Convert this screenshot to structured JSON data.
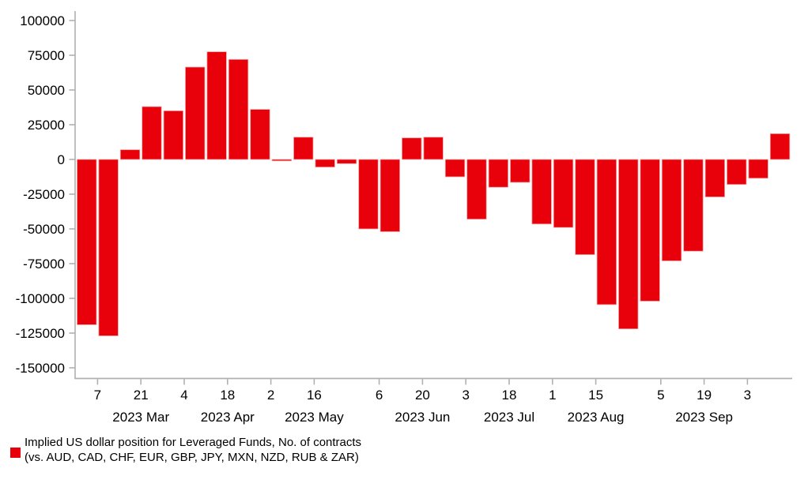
{
  "chart_data": {
    "type": "bar",
    "title": "",
    "xlabel": "",
    "ylabel": "",
    "grid": false,
    "legend_position": "bottom-left",
    "bar_color": "#e8000a",
    "bar_outline_color": "#f2a2a2",
    "axis_color": "#b0b0b0",
    "text_color": "#000000",
    "ylim": [
      -150000,
      100000
    ],
    "y_ticks": [
      100000,
      75000,
      50000,
      25000,
      0,
      -25000,
      -50000,
      -75000,
      -100000,
      -125000,
      -150000
    ],
    "series_name": "Implied US dollar position for Leveraged Funds, No. of contracts (vs. AUD, CAD, CHF, EUR, GBP, JPY, MXN, NZD, RUB & ZAR)",
    "categories": [
      "2023-02-28",
      "2023-03-07",
      "2023-03-14",
      "2023-03-21",
      "2023-03-28",
      "2023-04-04",
      "2023-04-11",
      "2023-04-18",
      "2023-04-25",
      "2023-05-02",
      "2023-05-09",
      "2023-05-16",
      "2023-05-23",
      "2023-05-30",
      "2023-06-06",
      "2023-06-13",
      "2023-06-20",
      "2023-06-27",
      "2023-07-03",
      "2023-07-11",
      "2023-07-18",
      "2023-07-25",
      "2023-08-01",
      "2023-08-08",
      "2023-08-15",
      "2023-08-22",
      "2023-08-29",
      "2023-09-05",
      "2023-09-12",
      "2023-09-19",
      "2023-09-26",
      "2023-10-03",
      "2023-10-10"
    ],
    "values": [
      -119000,
      -127000,
      7000,
      38000,
      35000,
      66500,
      77500,
      72000,
      36000,
      -1000,
      16000,
      -5500,
      -3000,
      -50000,
      -52000,
      15500,
      16000,
      -12500,
      -43000,
      -20000,
      -16500,
      -46500,
      -49000,
      -68500,
      -104500,
      -122000,
      -102000,
      -73000,
      -66000,
      -27000,
      -18000,
      -13500,
      18500
    ],
    "x_ticks": [
      {
        "bar_index": 1,
        "label": "7"
      },
      {
        "bar_index": 3,
        "label": "21"
      },
      {
        "bar_index": 5,
        "label": "4"
      },
      {
        "bar_index": 7,
        "label": "18"
      },
      {
        "bar_index": 9,
        "label": "2"
      },
      {
        "bar_index": 11,
        "label": "16"
      },
      {
        "bar_index": 14,
        "label": "6"
      },
      {
        "bar_index": 16,
        "label": "20"
      },
      {
        "bar_index": 18,
        "label": "3"
      },
      {
        "bar_index": 20,
        "label": "18"
      },
      {
        "bar_index": 22,
        "label": "1"
      },
      {
        "bar_index": 24,
        "label": "15"
      },
      {
        "bar_index": 27,
        "label": "5"
      },
      {
        "bar_index": 29,
        "label": "19"
      },
      {
        "bar_index": 31,
        "label": "3"
      }
    ],
    "month_labels": [
      {
        "bar_index": 3,
        "label": "2023 Mar"
      },
      {
        "bar_index": 7,
        "label": "2023 Apr"
      },
      {
        "bar_index": 11,
        "label": "2023 May"
      },
      {
        "bar_index": 16,
        "label": "2023 Jun"
      },
      {
        "bar_index": 20,
        "label": "2023 Jul"
      },
      {
        "bar_index": 24,
        "label": "2023 Aug"
      },
      {
        "bar_index": 29,
        "label": "2023 Sep"
      }
    ]
  },
  "legend": {
    "swatch_color": "#e8000a",
    "line1": "Implied US dollar position for Leveraged Funds, No. of contracts",
    "line2": "(vs. AUD, CAD, CHF, EUR, GBP, JPY, MXN, NZD, RUB & ZAR)"
  }
}
